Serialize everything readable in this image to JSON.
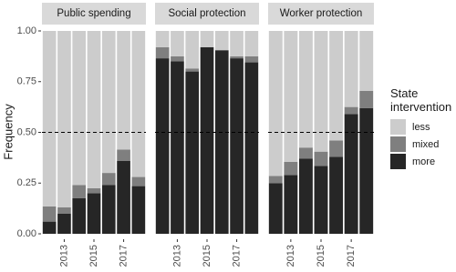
{
  "chart_data": {
    "type": "bar",
    "stacked": true,
    "ylabel": "Frequency",
    "ylim": [
      0,
      1
    ],
    "yticks": [
      {
        "value": 0,
        "label": "0.00"
      },
      {
        "value": 0.25,
        "label": "0.25"
      },
      {
        "value": 0.5,
        "label": "0.50"
      },
      {
        "value": 0.75,
        "label": "0.75"
      },
      {
        "value": 1,
        "label": "1.00"
      }
    ],
    "reference_line": 0.5,
    "categories": [
      null,
      "2013",
      null,
      "2015",
      null,
      "2017",
      null
    ],
    "legend_title": "State intervention",
    "series": [
      {
        "name": "less",
        "color": "#cccccc"
      },
      {
        "name": "mixed",
        "color": "#7f7f7f"
      },
      {
        "name": "more",
        "color": "#262626"
      }
    ],
    "facets": [
      {
        "title": "Public spending",
        "values": [
          [
            0.865,
            0.87,
            0.76,
            0.775,
            0.7,
            0.585,
            0.72
          ],
          [
            0.075,
            0.03,
            0.065,
            0.025,
            0.06,
            0.055,
            0.045
          ],
          [
            0.06,
            0.1,
            0.175,
            0.2,
            0.24,
            0.36,
            0.235
          ]
        ]
      },
      {
        "title": "Social protection",
        "values": [
          [
            0.08,
            0.125,
            0.185,
            0.08,
            0.095,
            0.125,
            0.125
          ],
          [
            0.055,
            0.025,
            0.015,
            0,
            0,
            0.01,
            0.03
          ],
          [
            0.865,
            0.85,
            0.8,
            0.92,
            0.905,
            0.865,
            0.845
          ]
        ]
      },
      {
        "title": "Worker protection",
        "values": [
          [
            0.715,
            0.645,
            0.575,
            0.595,
            0.54,
            0.375,
            0.295
          ],
          [
            0.035,
            0.065,
            0.055,
            0.07,
            0.08,
            0.035,
            0.085
          ],
          [
            0.25,
            0.29,
            0.37,
            0.335,
            0.38,
            0.59,
            0.62
          ]
        ]
      }
    ]
  }
}
